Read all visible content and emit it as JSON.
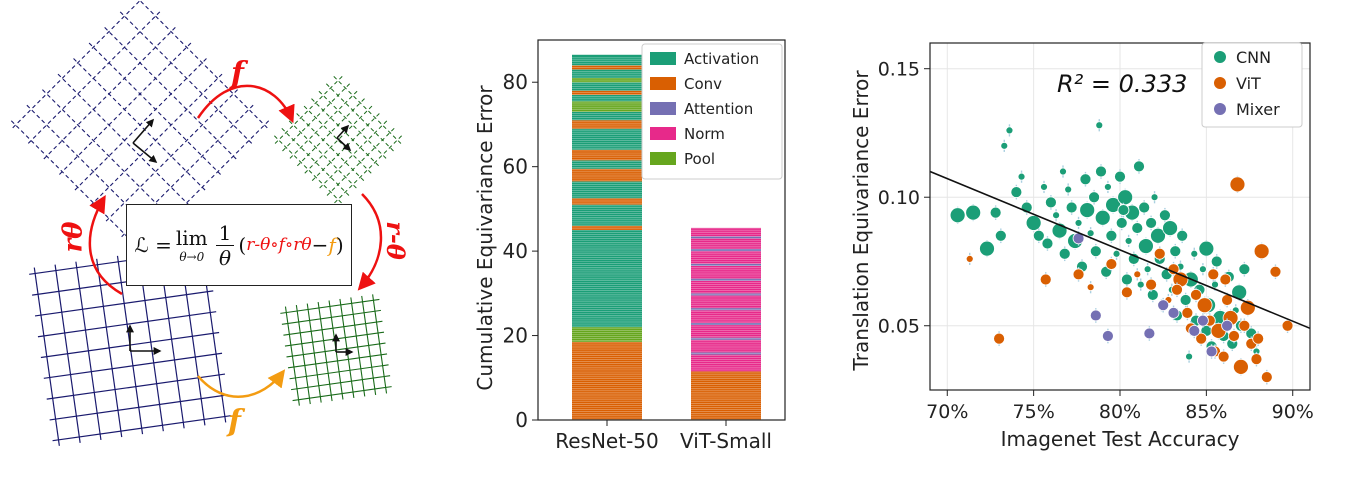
{
  "diagram": {
    "top_arrow_label": "f",
    "bottom_arrow_label": "f",
    "left_arrow_label": "rθ",
    "right_arrow_label": "r-θ",
    "equation": {
      "lhs": "ℒ = ",
      "lim": "lim",
      "lim_sub": "θ→0",
      "frac_num": "1",
      "frac_den": "θ",
      "open": "(",
      "red_term": "r-θ∘f∘rθ",
      "minus": " − ",
      "orange_term": "f",
      "close": ")"
    },
    "colors": {
      "red": "#ee1111",
      "orange": "#f39c12",
      "navy": "#1a1a6e",
      "green": "#1a6b1a"
    }
  },
  "chart_data": [
    {
      "type": "bar",
      "stacked": true,
      "categories": [
        "ResNet-50",
        "ViT-Small"
      ],
      "ylabel": "Cumulative Equivariance Error",
      "ylim": [
        0,
        90
      ],
      "yticks": [
        0,
        20,
        40,
        60,
        80
      ],
      "legend": {
        "position": "top-right",
        "entries": [
          {
            "name": "Activation",
            "color": "#1b9e77"
          },
          {
            "name": "Conv",
            "color": "#d95f02"
          },
          {
            "name": "Attention",
            "color": "#7570b3"
          },
          {
            "name": "Norm",
            "color": "#e7298a"
          },
          {
            "name": "Pool",
            "color": "#66a61e"
          }
        ]
      },
      "stacks": [
        {
          "category": "ResNet-50",
          "total": 86,
          "segments": [
            {
              "layer": "Conv",
              "value": 18.5
            },
            {
              "layer": "Pool",
              "value": 3.5
            },
            {
              "layer": "Activation",
              "value": 23
            },
            {
              "layer": "Conv",
              "value": 1
            },
            {
              "layer": "Activation",
              "value": 5
            },
            {
              "layer": "Conv",
              "value": 1.5
            },
            {
              "layer": "Activation",
              "value": 4
            },
            {
              "layer": "Conv",
              "value": 3
            },
            {
              "layer": "Activation",
              "value": 2
            },
            {
              "layer": "Conv",
              "value": 2.5
            },
            {
              "layer": "Activation",
              "value": 5
            },
            {
              "layer": "Conv",
              "value": 2
            },
            {
              "layer": "Activation",
              "value": 2
            },
            {
              "layer": "Pool",
              "value": 2.5
            },
            {
              "layer": "Activation",
              "value": 1.5
            },
            {
              "layer": "Conv",
              "value": 1
            },
            {
              "layer": "Activation",
              "value": 2
            },
            {
              "layer": "Pool",
              "value": 1
            },
            {
              "layer": "Activation",
              "value": 2
            },
            {
              "layer": "Conv",
              "value": 1
            },
            {
              "layer": "Activation",
              "value": 2.5
            }
          ]
        },
        {
          "category": "ViT-Small",
          "total": 45.5,
          "segments": [
            {
              "layer": "Conv",
              "value": 11.5
            },
            {
              "layer": "Norm",
              "value": 4
            },
            {
              "layer": "Attention",
              "value": 0.5
            },
            {
              "layer": "Norm",
              "value": 3
            },
            {
              "layer": "Attention",
              "value": 0.5
            },
            {
              "layer": "Norm",
              "value": 3
            },
            {
              "layer": "Attention",
              "value": 0.5
            },
            {
              "layer": "Norm",
              "value": 3
            },
            {
              "layer": "Attention",
              "value": 0.5
            },
            {
              "layer": "Norm",
              "value": 3
            },
            {
              "layer": "Attention",
              "value": 0.5
            },
            {
              "layer": "Norm",
              "value": 3
            },
            {
              "layer": "Attention",
              "value": 0.5
            },
            {
              "layer": "Norm",
              "value": 3
            },
            {
              "layer": "Attention",
              "value": 0.5
            },
            {
              "layer": "Norm",
              "value": 3
            },
            {
              "layer": "Attention",
              "value": 0.5
            },
            {
              "layer": "Norm",
              "value": 2.5
            },
            {
              "layer": "Attention",
              "value": 0.5
            },
            {
              "layer": "Norm",
              "value": 2
            }
          ]
        }
      ]
    },
    {
      "type": "scatter",
      "xlabel": "Imagenet Test Accuracy",
      "ylabel": "Translation Equivariance Error",
      "xlim": [
        69,
        91
      ],
      "ylim": [
        0.025,
        0.16
      ],
      "xticks": [
        {
          "value": 70,
          "label": "70%"
        },
        {
          "value": 75,
          "label": "75%"
        },
        {
          "value": 80,
          "label": "80%"
        },
        {
          "value": 85,
          "label": "85%"
        },
        {
          "value": 90,
          "label": "90%"
        }
      ],
      "yticks": [
        {
          "value": 0.05,
          "label": "0.05"
        },
        {
          "value": 0.1,
          "label": "0.10"
        },
        {
          "value": 0.15,
          "label": "0.15"
        }
      ],
      "annotation": "R² = 0.333",
      "grid": true,
      "legend": {
        "position": "top-right",
        "entries": [
          {
            "name": "CNN",
            "color": "#1b9e77"
          },
          {
            "name": "ViT",
            "color": "#d95f02"
          },
          {
            "name": "Mixer",
            "color": "#7570b3"
          }
        ]
      },
      "regression_line": {
        "x": [
          69,
          91
        ],
        "y": [
          0.11,
          0.049
        ]
      },
      "series": [
        {
          "name": "CNN",
          "color": "#1b9e77",
          "points": [
            [
              70.6,
              0.093,
              3
            ],
            [
              71.5,
              0.094,
              3
            ],
            [
              72.3,
              0.08,
              3
            ],
            [
              73.1,
              0.085,
              2
            ],
            [
              73.3,
              0.12,
              1
            ],
            [
              73.6,
              0.126,
              1
            ],
            [
              74.0,
              0.102,
              2
            ],
            [
              74.3,
              0.108,
              1
            ],
            [
              74.6,
              0.096,
              2
            ],
            [
              75.0,
              0.09,
              3
            ],
            [
              75.3,
              0.085,
              2
            ],
            [
              75.6,
              0.104,
              1
            ],
            [
              75.8,
              0.082,
              2
            ],
            [
              76.0,
              0.098,
              2
            ],
            [
              76.3,
              0.093,
              1
            ],
            [
              76.5,
              0.087,
              3
            ],
            [
              76.8,
              0.078,
              2
            ],
            [
              77.0,
              0.103,
              1
            ],
            [
              77.2,
              0.096,
              2
            ],
            [
              77.4,
              0.083,
              3
            ],
            [
              77.6,
              0.09,
              1
            ],
            [
              77.8,
              0.073,
              2
            ],
            [
              78.0,
              0.107,
              2
            ],
            [
              78.1,
              0.095,
              3
            ],
            [
              78.3,
              0.086,
              1
            ],
            [
              78.5,
              0.1,
              2
            ],
            [
              78.6,
              0.079,
              2
            ],
            [
              78.8,
              0.128,
              1
            ],
            [
              78.9,
              0.11,
              2
            ],
            [
              79.0,
              0.092,
              3
            ],
            [
              79.2,
              0.071,
              2
            ],
            [
              79.3,
              0.104,
              1
            ],
            [
              79.5,
              0.085,
              2
            ],
            [
              79.6,
              0.097,
              3
            ],
            [
              79.8,
              0.078,
              1
            ],
            [
              80.0,
              0.108,
              2
            ],
            [
              80.1,
              0.09,
              2
            ],
            [
              80.3,
              0.1,
              3
            ],
            [
              80.4,
              0.068,
              2
            ],
            [
              80.5,
              0.083,
              1
            ],
            [
              80.7,
              0.094,
              3
            ],
            [
              80.8,
              0.076,
              2
            ],
            [
              81.0,
              0.088,
              2
            ],
            [
              81.1,
              0.112,
              2
            ],
            [
              81.2,
              0.066,
              1
            ],
            [
              81.4,
              0.096,
              2
            ],
            [
              81.5,
              0.081,
              3
            ],
            [
              81.6,
              0.072,
              1
            ],
            [
              81.8,
              0.09,
              2
            ],
            [
              81.9,
              0.062,
              2
            ],
            [
              82.0,
              0.1,
              1
            ],
            [
              82.2,
              0.085,
              3
            ],
            [
              82.3,
              0.076,
              2
            ],
            [
              82.4,
              0.058,
              1
            ],
            [
              82.6,
              0.093,
              2
            ],
            [
              82.7,
              0.07,
              2
            ],
            [
              82.9,
              0.088,
              3
            ],
            [
              83.0,
              0.064,
              1
            ],
            [
              83.2,
              0.079,
              2
            ],
            [
              83.3,
              0.054,
              2
            ],
            [
              83.5,
              0.073,
              1
            ],
            [
              83.6,
              0.085,
              2
            ],
            [
              83.8,
              0.06,
              2
            ],
            [
              84.0,
              0.038,
              1
            ],
            [
              84.1,
              0.068,
              3
            ],
            [
              84.3,
              0.078,
              1
            ],
            [
              84.4,
              0.052,
              2
            ],
            [
              84.6,
              0.064,
              2
            ],
            [
              84.8,
              0.072,
              1
            ],
            [
              85.0,
              0.048,
              2
            ],
            [
              85.1,
              0.058,
              3
            ],
            [
              85.3,
              0.042,
              2
            ],
            [
              85.5,
              0.066,
              1
            ],
            [
              85.6,
              0.075,
              2
            ],
            [
              85.8,
              0.053,
              3
            ],
            [
              86.0,
              0.046,
              2
            ],
            [
              86.1,
              0.06,
              1
            ],
            [
              86.3,
              0.069,
              2
            ],
            [
              86.5,
              0.043,
              2
            ],
            [
              86.7,
              0.056,
              1
            ],
            [
              86.9,
              0.063,
              3
            ],
            [
              87.0,
              0.05,
              2
            ],
            [
              87.2,
              0.072,
              2
            ],
            [
              87.4,
              0.058,
              1
            ],
            [
              87.6,
              0.047,
              2
            ],
            [
              87.9,
              0.04,
              1
            ],
            [
              85.0,
              0.08,
              3
            ],
            [
              80.2,
              0.095,
              2
            ],
            [
              76.7,
              0.11,
              1
            ],
            [
              72.8,
              0.094,
              2
            ]
          ]
        },
        {
          "name": "ViT",
          "color": "#d95f02",
          "points": [
            [
              71.3,
              0.076,
              1
            ],
            [
              73.0,
              0.045,
              2
            ],
            [
              75.7,
              0.068,
              2
            ],
            [
              77.6,
              0.07,
              2
            ],
            [
              78.3,
              0.065,
              1
            ],
            [
              79.5,
              0.074,
              2
            ],
            [
              80.4,
              0.063,
              2
            ],
            [
              81.0,
              0.07,
              1
            ],
            [
              81.8,
              0.066,
              2
            ],
            [
              82.3,
              0.078,
              2
            ],
            [
              82.8,
              0.06,
              1
            ],
            [
              83.1,
              0.072,
              2
            ],
            [
              83.5,
              0.068,
              3
            ],
            [
              83.9,
              0.055,
              2
            ],
            [
              84.1,
              0.049,
              2
            ],
            [
              84.4,
              0.062,
              2
            ],
            [
              84.7,
              0.045,
              2
            ],
            [
              84.9,
              0.058,
              3
            ],
            [
              85.2,
              0.052,
              2
            ],
            [
              85.5,
              0.04,
              2
            ],
            [
              85.7,
              0.048,
              3
            ],
            [
              86.0,
              0.038,
              2
            ],
            [
              86.2,
              0.06,
              2
            ],
            [
              86.4,
              0.053,
              3
            ],
            [
              86.6,
              0.046,
              2
            ],
            [
              86.8,
              0.105,
              3
            ],
            [
              87.0,
              0.034,
              3
            ],
            [
              87.2,
              0.05,
              2
            ],
            [
              87.4,
              0.057,
              3
            ],
            [
              87.6,
              0.043,
              2
            ],
            [
              87.9,
              0.037,
              2
            ],
            [
              88.2,
              0.079,
              3
            ],
            [
              88.5,
              0.03,
              2
            ],
            [
              89.0,
              0.071,
              2
            ],
            [
              89.7,
              0.05,
              2
            ],
            [
              85.4,
              0.07,
              2
            ],
            [
              83.3,
              0.064,
              2
            ],
            [
              88.0,
              0.045,
              2
            ],
            [
              86.1,
              0.068,
              2
            ]
          ]
        },
        {
          "name": "Mixer",
          "color": "#7570b3",
          "points": [
            [
              77.6,
              0.084,
              2
            ],
            [
              78.6,
              0.054,
              2
            ],
            [
              79.3,
              0.046,
              2
            ],
            [
              81.7,
              0.047,
              2
            ],
            [
              82.5,
              0.058,
              2
            ],
            [
              83.1,
              0.055,
              2
            ],
            [
              84.3,
              0.048,
              2
            ],
            [
              84.8,
              0.052,
              2
            ],
            [
              85.3,
              0.04,
              2
            ],
            [
              86.2,
              0.05,
              2
            ]
          ]
        }
      ]
    }
  ]
}
